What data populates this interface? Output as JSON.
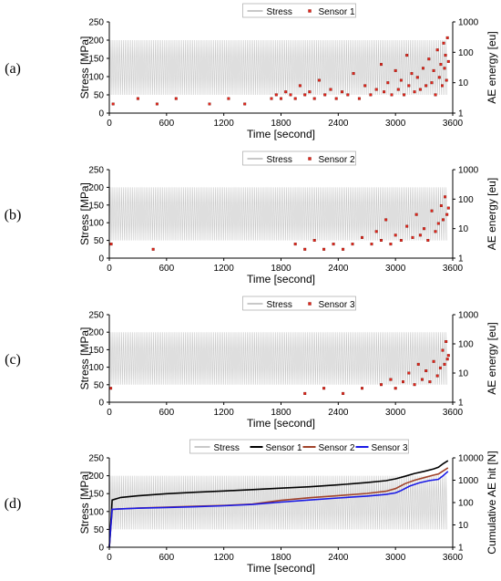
{
  "panels": [
    {
      "label": "(a)",
      "legend": {
        "stress": "Stress",
        "series": [
          "Sensor 1"
        ]
      },
      "xlabel": "Time [second]",
      "ylabel_left": "Stress [MPa]",
      "ylabel_right": "AE energy [eu]"
    },
    {
      "label": "(b)",
      "legend": {
        "stress": "Stress",
        "series": [
          "Sensor 2"
        ]
      },
      "xlabel": "Time [second]",
      "ylabel_left": "Stress [MPa]",
      "ylabel_right": "AE energy [eu]"
    },
    {
      "label": "(c)",
      "legend": {
        "stress": "Stress",
        "series": [
          "Sensor 3"
        ]
      },
      "xlabel": "Time [second]",
      "ylabel_left": "Stress [MPa]",
      "ylabel_right": "AE energy [eu]"
    },
    {
      "label": "(d)",
      "legend": {
        "stress": "Stress",
        "series": [
          "Sensor 1",
          "Sensor 2",
          "Sensor 3"
        ]
      },
      "xlabel": "Time [second]",
      "ylabel_left": "Stress [MPa]",
      "ylabel_right": "Cumulative AE hit [N]"
    }
  ],
  "colors": {
    "stress": "#c8c8c8",
    "scatter": "#e8241c",
    "scatter_edge": "#7a1c10",
    "sensor_1": "#000000",
    "sensor_2": "#a0432a",
    "sensor_3": "#1a1ae6",
    "axis": "#000000"
  },
  "chart_data": [
    {
      "type": "scatter",
      "panel": "(a)",
      "x_ticks": [
        0,
        600,
        1200,
        1800,
        2400,
        3000,
        3600
      ],
      "y_left_ticks": [
        0,
        50,
        100,
        150,
        200,
        250
      ],
      "y_right_ticks": [
        1,
        10,
        100,
        1000
      ],
      "xlim": [
        0,
        3600
      ],
      "ylim_left": [
        0,
        250
      ],
      "ylim_right": [
        1,
        1000
      ],
      "y_right_scale": "log",
      "stress": {
        "min": 50,
        "max": 200,
        "cycles": 180
      },
      "series": [
        {
          "name": "Sensor 1",
          "points": [
            [
              40,
              2
            ],
            [
              300,
              3
            ],
            [
              500,
              2
            ],
            [
              700,
              3
            ],
            [
              1050,
              2
            ],
            [
              1250,
              3
            ],
            [
              1420,
              2
            ],
            [
              1700,
              3
            ],
            [
              1750,
              4
            ],
            [
              1800,
              3
            ],
            [
              1850,
              5
            ],
            [
              1900,
              4
            ],
            [
              1950,
              3
            ],
            [
              2000,
              8
            ],
            [
              2050,
              4
            ],
            [
              2100,
              5
            ],
            [
              2150,
              3
            ],
            [
              2200,
              12
            ],
            [
              2260,
              4
            ],
            [
              2320,
              6
            ],
            [
              2380,
              3
            ],
            [
              2440,
              5
            ],
            [
              2500,
              4
            ],
            [
              2560,
              20
            ],
            [
              2620,
              3
            ],
            [
              2680,
              8
            ],
            [
              2740,
              4
            ],
            [
              2800,
              6
            ],
            [
              2850,
              40
            ],
            [
              2880,
              5
            ],
            [
              2920,
              10
            ],
            [
              2960,
              4
            ],
            [
              3000,
              25
            ],
            [
              3030,
              6
            ],
            [
              3060,
              12
            ],
            [
              3090,
              4
            ],
            [
              3120,
              80
            ],
            [
              3140,
              8
            ],
            [
              3170,
              20
            ],
            [
              3200,
              5
            ],
            [
              3230,
              15
            ],
            [
              3260,
              6
            ],
            [
              3290,
              30
            ],
            [
              3320,
              8
            ],
            [
              3350,
              60
            ],
            [
              3380,
              10
            ],
            [
              3400,
              25
            ],
            [
              3420,
              4
            ],
            [
              3440,
              120
            ],
            [
              3460,
              15
            ],
            [
              3475,
              40
            ],
            [
              3490,
              8
            ],
            [
              3505,
              200
            ],
            [
              3515,
              30
            ],
            [
              3525,
              80
            ],
            [
              3535,
              12
            ],
            [
              3545,
              300
            ],
            [
              3555,
              50
            ]
          ]
        }
      ]
    },
    {
      "type": "scatter",
      "panel": "(b)",
      "x_ticks": [
        0,
        600,
        1200,
        1800,
        2400,
        3000,
        3600
      ],
      "y_left_ticks": [
        0,
        50,
        100,
        150,
        200,
        250
      ],
      "y_right_ticks": [
        1,
        10,
        100,
        1000
      ],
      "xlim": [
        0,
        3600
      ],
      "ylim_left": [
        0,
        250
      ],
      "ylim_right": [
        1,
        1000
      ],
      "y_right_scale": "log",
      "stress": {
        "min": 50,
        "max": 200,
        "cycles": 180
      },
      "series": [
        {
          "name": "Sensor 2",
          "points": [
            [
              20,
              3
            ],
            [
              460,
              2
            ],
            [
              1950,
              3
            ],
            [
              2050,
              2
            ],
            [
              2150,
              4
            ],
            [
              2250,
              2
            ],
            [
              2350,
              3
            ],
            [
              2450,
              2
            ],
            [
              2550,
              3
            ],
            [
              2650,
              5
            ],
            [
              2750,
              3
            ],
            [
              2800,
              8
            ],
            [
              2850,
              4
            ],
            [
              2900,
              20
            ],
            [
              2950,
              3
            ],
            [
              3000,
              6
            ],
            [
              3060,
              4
            ],
            [
              3120,
              12
            ],
            [
              3180,
              5
            ],
            [
              3220,
              30
            ],
            [
              3260,
              6
            ],
            [
              3300,
              10
            ],
            [
              3340,
              4
            ],
            [
              3380,
              40
            ],
            [
              3420,
              8
            ],
            [
              3450,
              15
            ],
            [
              3480,
              60
            ],
            [
              3500,
              20
            ],
            [
              3520,
              120
            ],
            [
              3540,
              30
            ],
            [
              3555,
              50
            ]
          ]
        }
      ]
    },
    {
      "type": "scatter",
      "panel": "(c)",
      "x_ticks": [
        0,
        600,
        1200,
        1800,
        2400,
        3000,
        3600
      ],
      "y_left_ticks": [
        0,
        50,
        100,
        150,
        200,
        250
      ],
      "y_right_ticks": [
        1,
        10,
        100,
        1000
      ],
      "xlim": [
        0,
        3600
      ],
      "ylim_left": [
        0,
        250
      ],
      "ylim_right": [
        1,
        1000
      ],
      "y_right_scale": "log",
      "stress": {
        "min": 50,
        "max": 200,
        "cycles": 180
      },
      "series": [
        {
          "name": "Sensor 3",
          "points": [
            [
              15,
              3
            ],
            [
              2050,
              2
            ],
            [
              2250,
              3
            ],
            [
              2450,
              2
            ],
            [
              2650,
              3
            ],
            [
              2850,
              4
            ],
            [
              2950,
              6
            ],
            [
              3000,
              3
            ],
            [
              3080,
              5
            ],
            [
              3140,
              10
            ],
            [
              3200,
              4
            ],
            [
              3240,
              20
            ],
            [
              3280,
              6
            ],
            [
              3320,
              12
            ],
            [
              3360,
              5
            ],
            [
              3400,
              25
            ],
            [
              3440,
              8
            ],
            [
              3470,
              15
            ],
            [
              3495,
              60
            ],
            [
              3515,
              20
            ],
            [
              3530,
              120
            ],
            [
              3545,
              30
            ],
            [
              3555,
              40
            ]
          ]
        }
      ]
    },
    {
      "type": "line",
      "panel": "(d)",
      "x_ticks": [
        0,
        600,
        1200,
        1800,
        2400,
        3000,
        3600
      ],
      "y_left_ticks": [
        0,
        50,
        100,
        150,
        200,
        250
      ],
      "y_right_ticks": [
        1,
        10,
        100,
        1000,
        10000
      ],
      "xlim": [
        0,
        3600
      ],
      "ylim_left": [
        0,
        250
      ],
      "ylim_right": [
        1,
        10000
      ],
      "y_right_scale": "log",
      "stress": {
        "min": 50,
        "max": 200,
        "cycles": 180
      },
      "series": [
        {
          "name": "Sensor 1",
          "x": [
            0,
            30,
            120,
            300,
            600,
            900,
            1200,
            1500,
            1800,
            2100,
            2400,
            2700,
            2900,
            3000,
            3100,
            3200,
            3300,
            3400,
            3450,
            3500,
            3550
          ],
          "y": [
            1,
            130,
            170,
            200,
            250,
            290,
            330,
            380,
            440,
            510,
            620,
            780,
            950,
            1150,
            1500,
            2000,
            2500,
            3200,
            3800,
            5500,
            7500
          ]
        },
        {
          "name": "Sensor 2",
          "x": [
            0,
            30,
            300,
            600,
            900,
            1200,
            1500,
            1800,
            2100,
            2400,
            2700,
            2900,
            3000,
            3100,
            3200,
            3300,
            3400,
            3450,
            3500,
            3550
          ],
          "y": [
            1,
            50,
            57,
            62,
            68,
            74,
            85,
            125,
            165,
            205,
            255,
            320,
            420,
            700,
            1000,
            1300,
            1700,
            1900,
            2600,
            3600
          ]
        },
        {
          "name": "Sensor 3",
          "x": [
            0,
            30,
            300,
            600,
            900,
            1200,
            1500,
            1800,
            2100,
            2400,
            2700,
            2900,
            3000,
            3050,
            3150,
            3250,
            3350,
            3450,
            3500,
            3550
          ],
          "y": [
            1,
            50,
            56,
            60,
            65,
            72,
            82,
            105,
            130,
            160,
            195,
            230,
            270,
            330,
            550,
            760,
            950,
            1100,
            1600,
            2500
          ]
        }
      ]
    }
  ]
}
